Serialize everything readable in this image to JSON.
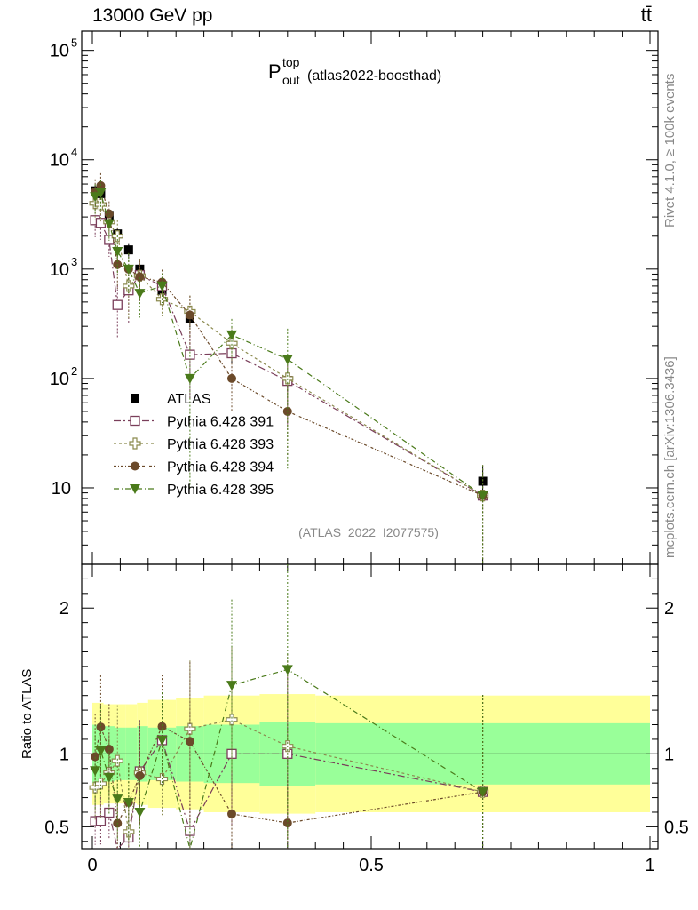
{
  "header": {
    "energy_label": "13000 GeV pp",
    "process_label": "tt̄"
  },
  "side_text": {
    "rivet": "Rivet 4.1.0, ≥ 100k events",
    "mcplots": "mcplots.cern.ch [arXiv:1306.3436]"
  },
  "chart_data": {
    "type": "scatter",
    "title": {
      "base": "P",
      "sup": "top",
      "sub": "out",
      "suffix": "(atlas2022-boosthad)"
    },
    "analysis_tag": "(ATLAS_2022_I2077575)",
    "xlim": [
      0,
      1
    ],
    "main_ylim": [
      2,
      150000
    ],
    "main_yscale": "log",
    "main_ytick_labels": [
      {
        "value": 100000,
        "base": "10",
        "exp": "5"
      },
      {
        "value": 10000,
        "base": "10",
        "exp": "4"
      },
      {
        "value": 1000,
        "base": "10",
        "exp": "3"
      },
      {
        "value": 100,
        "base": "10",
        "exp": "2"
      },
      {
        "value": 10,
        "base": "10",
        "exp": ""
      }
    ],
    "ratio_ylim": [
      0.35,
      2.3
    ],
    "ratio_ylabel": "Ratio to ATLAS",
    "ratio_ytick_labels": [
      {
        "value": 2,
        "label": "2"
      },
      {
        "value": 1,
        "label": "1"
      },
      {
        "value": 0.5,
        "label": "0.5"
      }
    ],
    "x_tick_labels": [
      {
        "value": 0,
        "label": "0"
      },
      {
        "value": 0.5,
        "label": "0.5"
      },
      {
        "value": 1,
        "label": "1"
      }
    ],
    "ratio_band": {
      "edges": [
        0,
        0.02,
        0.04,
        0.06,
        0.08,
        0.1,
        0.15,
        0.2,
        0.3,
        0.4,
        1.0
      ],
      "inner": [
        0.2,
        0.19,
        0.18,
        0.18,
        0.19,
        0.18,
        0.19,
        0.2,
        0.22,
        0.21
      ],
      "outer": [
        0.35,
        0.34,
        0.34,
        0.34,
        0.35,
        0.37,
        0.38,
        0.4,
        0.41,
        0.4
      ]
    },
    "series": [
      {
        "name": "ATLAS",
        "color": "#000000",
        "marker": "filled-square",
        "x": [
          0.005,
          0.015,
          0.03,
          0.045,
          0.065,
          0.085,
          0.125,
          0.175,
          0.25,
          0.35,
          0.7
        ],
        "y": [
          5200,
          4900,
          3100,
          2100,
          1500,
          1000,
          640,
          350,
          170,
          95,
          11.5
        ],
        "yerr": [
          0.13,
          0.13,
          0.13,
          0.13,
          0.13,
          0.13,
          0.15,
          0.16,
          0.18,
          0.2,
          0.35
        ]
      },
      {
        "name": "Pythia 6.428 391",
        "color": "#7a3e5a",
        "marker": "open-square",
        "dash": "8,3,2,3",
        "x": [
          0.005,
          0.015,
          0.03,
          0.045,
          0.065,
          0.085,
          0.125,
          0.175,
          0.25,
          0.35,
          0.7
        ],
        "y": [
          2800,
          2650,
          1850,
          470,
          640,
          880,
          700,
          165,
          170,
          95,
          8.5
        ],
        "yerr": [
          0.3,
          0.3,
          0.3,
          0.5,
          0.5,
          0.4,
          0.3,
          0.6,
          0.5,
          0.6,
          0.9
        ]
      },
      {
        "name": "Pythia 6.428 393",
        "color": "#8b8a4e",
        "marker": "open-cross",
        "dash": "3,3",
        "x": [
          0.005,
          0.015,
          0.03,
          0.045,
          0.065,
          0.085,
          0.125,
          0.175,
          0.25,
          0.35,
          0.7
        ],
        "y": [
          4000,
          3900,
          2700,
          2000,
          700,
          870,
          530,
          410,
          210,
          100,
          8.5
        ],
        "yerr": [
          0.3,
          0.3,
          0.3,
          0.4,
          0.5,
          0.4,
          0.3,
          0.4,
          0.4,
          0.6,
          0.9
        ]
      },
      {
        "name": "Pythia 6.428 394",
        "color": "#6b4a2a",
        "marker": "filled-circle",
        "dash": "3,2,1,2",
        "x": [
          0.005,
          0.015,
          0.03,
          0.045,
          0.065,
          0.085,
          0.125,
          0.175,
          0.25,
          0.35,
          0.7
        ],
        "y": [
          5100,
          5800,
          3200,
          1100,
          1000,
          850,
          760,
          380,
          100,
          50,
          8.5
        ],
        "yerr": [
          0.3,
          0.3,
          0.3,
          0.4,
          0.4,
          0.4,
          0.3,
          0.5,
          0.5,
          0.6,
          0.9
        ]
      },
      {
        "name": "Pythia 6.428 395",
        "color": "#4a7a1a",
        "marker": "filled-triangle-down",
        "dash": "6,3,1,3",
        "x": [
          0.005,
          0.015,
          0.03,
          0.045,
          0.065,
          0.085,
          0.125,
          0.175,
          0.25,
          0.35,
          0.7
        ],
        "y": [
          4600,
          5000,
          2600,
          1450,
          1000,
          600,
          700,
          100,
          250,
          150,
          8.5
        ],
        "yerr": [
          0.3,
          0.3,
          0.3,
          0.4,
          0.4,
          0.4,
          0.3,
          0.9,
          0.4,
          0.9,
          0.9
        ]
      }
    ]
  }
}
